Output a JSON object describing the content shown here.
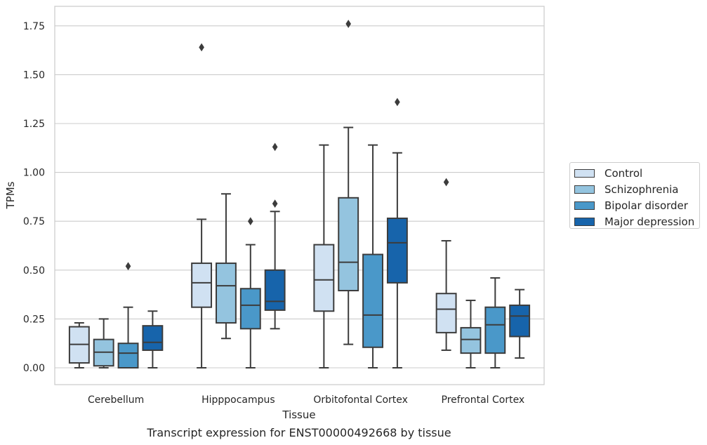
{
  "chart_data": {
    "type": "box",
    "caption": "Transcript expression for ENST00000492668 by tissue",
    "xlabel": "Tissue",
    "ylabel": "TPMs",
    "ylim": [
      -0.085,
      1.845
    ],
    "yticks": [
      "0.00",
      "0.25",
      "0.50",
      "0.75",
      "1.00",
      "1.25",
      "1.50",
      "1.75"
    ],
    "categories": [
      "Cerebellum",
      "Hipppocampus",
      "Orbitofontal Cortex",
      "Prefrontal Cortex"
    ],
    "grid": "horizontal",
    "legend_position": "right",
    "series": [
      {
        "name": "Control",
        "color": "#d0e1f2",
        "boxes": [
          {
            "whislo": 0.0,
            "q1": 0.025,
            "med": 0.12,
            "q3": 0.21,
            "whishi": 0.23,
            "fliers": []
          },
          {
            "whislo": 0.0,
            "q1": 0.31,
            "med": 0.435,
            "q3": 0.535,
            "whishi": 0.76,
            "fliers": [
              1.64
            ]
          },
          {
            "whislo": 0.0,
            "q1": 0.29,
            "med": 0.45,
            "q3": 0.63,
            "whishi": 1.14,
            "fliers": []
          },
          {
            "whislo": 0.09,
            "q1": 0.18,
            "med": 0.3,
            "q3": 0.38,
            "whishi": 0.65,
            "fliers": [
              0.95
            ]
          }
        ]
      },
      {
        "name": "Schizophrenia",
        "color": "#94c4df",
        "boxes": [
          {
            "whislo": 0.0,
            "q1": 0.01,
            "med": 0.08,
            "q3": 0.145,
            "whishi": 0.25,
            "fliers": []
          },
          {
            "whislo": 0.15,
            "q1": 0.23,
            "med": 0.42,
            "q3": 0.535,
            "whishi": 0.89,
            "fliers": []
          },
          {
            "whislo": 0.12,
            "q1": 0.395,
            "med": 0.54,
            "q3": 0.87,
            "whishi": 1.23,
            "fliers": [
              1.76
            ]
          },
          {
            "whislo": 0.0,
            "q1": 0.075,
            "med": 0.145,
            "q3": 0.205,
            "whishi": 0.345,
            "fliers": []
          }
        ]
      },
      {
        "name": "Bipolar disorder",
        "color": "#4a98c9",
        "boxes": [
          {
            "whislo": 0.0,
            "q1": 0.0,
            "med": 0.075,
            "q3": 0.125,
            "whishi": 0.31,
            "fliers": [
              0.52
            ]
          },
          {
            "whislo": 0.0,
            "q1": 0.2,
            "med": 0.32,
            "q3": 0.405,
            "whishi": 0.63,
            "fliers": [
              0.75
            ]
          },
          {
            "whislo": 0.0,
            "q1": 0.105,
            "med": 0.27,
            "q3": 0.58,
            "whishi": 1.14,
            "fliers": []
          },
          {
            "whislo": 0.0,
            "q1": 0.075,
            "med": 0.22,
            "q3": 0.31,
            "whishi": 0.46,
            "fliers": []
          }
        ]
      },
      {
        "name": "Major depression",
        "color": "#1764ab",
        "boxes": [
          {
            "whislo": 0.0,
            "q1": 0.09,
            "med": 0.13,
            "q3": 0.215,
            "whishi": 0.29,
            "fliers": []
          },
          {
            "whislo": 0.2,
            "q1": 0.295,
            "med": 0.34,
            "q3": 0.5,
            "whishi": 0.8,
            "fliers": [
              0.84,
              1.13
            ]
          },
          {
            "whislo": 0.0,
            "q1": 0.435,
            "med": 0.64,
            "q3": 0.765,
            "whishi": 1.1,
            "fliers": [
              1.36
            ]
          },
          {
            "whislo": 0.05,
            "q1": 0.16,
            "med": 0.265,
            "q3": 0.32,
            "whishi": 0.4,
            "fliers": []
          }
        ]
      }
    ]
  }
}
